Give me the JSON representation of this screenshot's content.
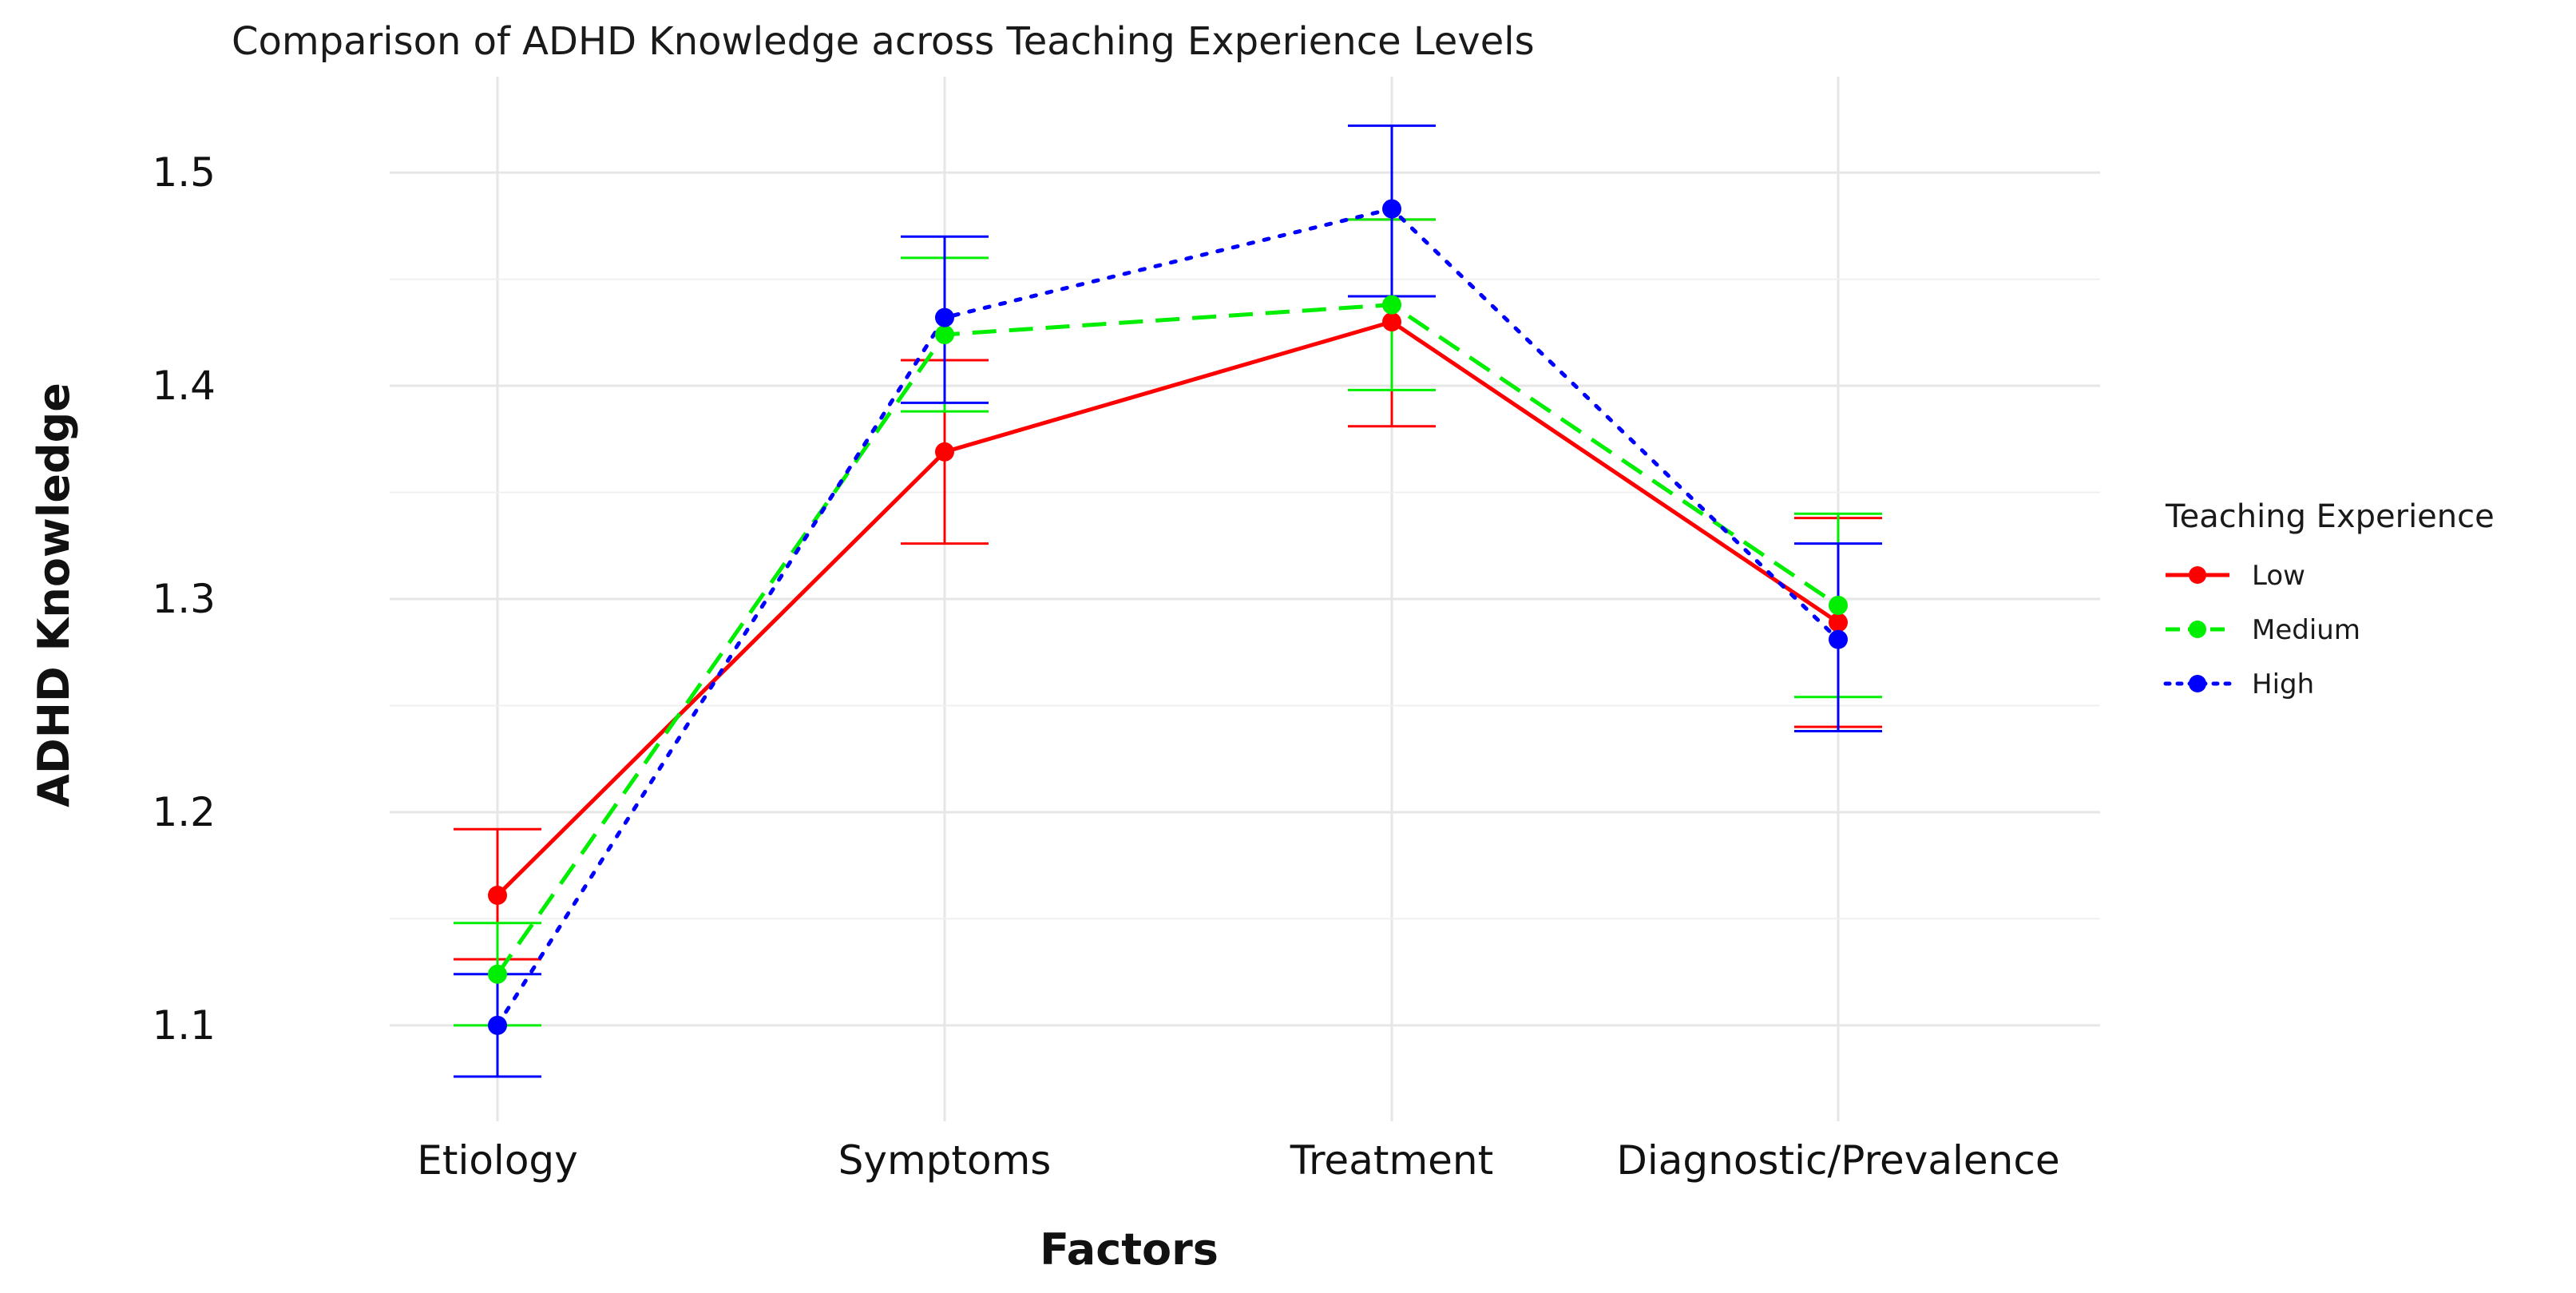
{
  "chart_data": {
    "type": "line",
    "title": "Comparison of ADHD Knowledge across Teaching Experience Levels",
    "xlabel": "Factors",
    "ylabel": "ADHD Knowledge",
    "categories": [
      "Etiology",
      "Symptoms",
      "Treatment",
      "Diagnostic/Prevalence"
    ],
    "ylim": [
      1.055,
      1.545
    ],
    "yticks": [
      1.1,
      1.2,
      1.3,
      1.4,
      1.5
    ],
    "ytick_labels": [
      "1.1",
      "1.2",
      "1.3",
      "1.4",
      "1.5"
    ],
    "grid": true,
    "legend": {
      "title": "Teaching Experience",
      "position": "right"
    },
    "series": [
      {
        "name": "Low",
        "color": "#ff0000",
        "dash": "solid",
        "values": [
          1.161,
          1.369,
          1.43,
          1.289
        ],
        "errors_low": [
          1.131,
          1.326,
          1.381,
          1.24
        ],
        "errors_high": [
          1.192,
          1.412,
          1.478,
          1.338
        ]
      },
      {
        "name": "Medium",
        "color": "#00ee00",
        "dash": "dashed",
        "values": [
          1.124,
          1.424,
          1.438,
          1.297
        ],
        "errors_low": [
          1.1,
          1.388,
          1.398,
          1.254
        ],
        "errors_high": [
          1.148,
          1.46,
          1.478,
          1.34
        ]
      },
      {
        "name": "High",
        "color": "#0000ff",
        "dash": "dotted",
        "values": [
          1.1,
          1.432,
          1.483,
          1.281
        ],
        "errors_low": [
          1.076,
          1.392,
          1.442,
          1.238
        ],
        "errors_high": [
          1.124,
          1.47,
          1.522,
          1.326
        ]
      }
    ]
  }
}
